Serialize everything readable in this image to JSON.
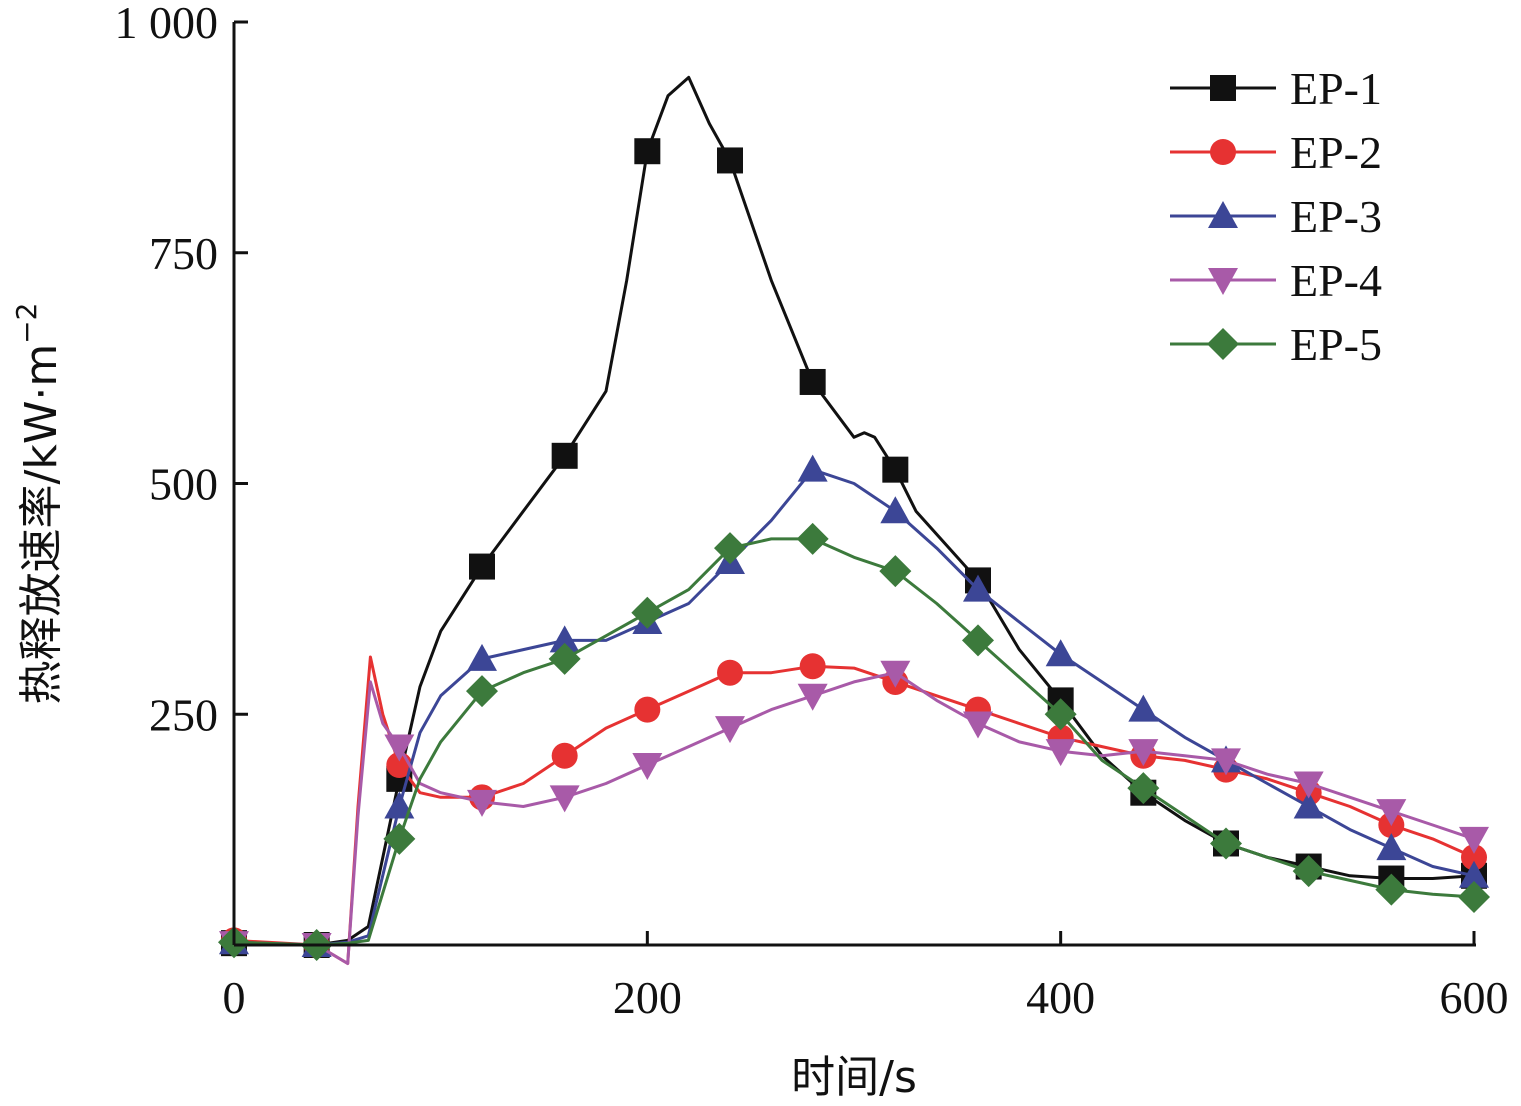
{
  "chart_data": {
    "type": "line",
    "title": "",
    "xlabel": "时间/s",
    "ylabel": "热释放速率/kW·m",
    "ylabel_superscript": "−2",
    "xlim": [
      0,
      600
    ],
    "ylim": [
      0,
      1000
    ],
    "xticks": [
      0,
      200,
      400,
      600
    ],
    "xtick_labels": [
      "0",
      "200",
      "400",
      "600"
    ],
    "yticks": [
      250,
      500,
      750,
      1000
    ],
    "ytick_labels": [
      "250",
      "500",
      "750",
      "1 000"
    ],
    "grid": false,
    "legend_position": "top-right",
    "series": [
      {
        "name": "EP-1",
        "color": "#111111",
        "marker": "square",
        "x": [
          0,
          40,
          55,
          65,
          80,
          90,
          100,
          120,
          140,
          160,
          180,
          190,
          200,
          210,
          215,
          220,
          230,
          240,
          260,
          280,
          300,
          305,
          310,
          320,
          330,
          350,
          360,
          380,
          400,
          420,
          440,
          460,
          480,
          500,
          520,
          540,
          560,
          580,
          600
        ],
        "y": [
          2,
          0,
          5,
          20,
          180,
          280,
          340,
          410,
          470,
          530,
          600,
          720,
          860,
          920,
          930,
          940,
          890,
          850,
          720,
          610,
          550,
          555,
          550,
          515,
          470,
          420,
          395,
          320,
          265,
          205,
          165,
          135,
          110,
          95,
          85,
          75,
          72,
          72,
          75
        ],
        "marker_x": [
          0,
          40,
          80,
          120,
          160,
          200,
          240,
          280,
          320,
          360,
          400,
          440,
          480,
          520,
          560,
          600
        ],
        "marker_y": [
          2,
          0,
          180,
          410,
          530,
          860,
          850,
          610,
          515,
          395,
          265,
          165,
          110,
          85,
          72,
          75
        ]
      },
      {
        "name": "EP-2",
        "color": "#e63232",
        "marker": "circle",
        "x": [
          0,
          40,
          55,
          60,
          66,
          72,
          80,
          90,
          100,
          120,
          140,
          160,
          180,
          200,
          220,
          240,
          260,
          280,
          300,
          320,
          340,
          360,
          380,
          400,
          420,
          440,
          460,
          480,
          500,
          520,
          540,
          560,
          580,
          600
        ],
        "y": [
          5,
          0,
          -20,
          150,
          312,
          250,
          195,
          165,
          160,
          160,
          175,
          205,
          235,
          255,
          275,
          295,
          295,
          302,
          300,
          285,
          270,
          255,
          240,
          225,
          215,
          205,
          200,
          190,
          180,
          165,
          150,
          130,
          115,
          95
        ],
        "marker_x": [
          0,
          40,
          80,
          120,
          160,
          200,
          240,
          280,
          320,
          360,
          400,
          440,
          480,
          520,
          560,
          600
        ],
        "marker_y": [
          5,
          0,
          195,
          160,
          205,
          255,
          295,
          302,
          285,
          255,
          225,
          205,
          190,
          165,
          130,
          95
        ]
      },
      {
        "name": "EP-3",
        "color": "#3c4696",
        "marker": "triangle-up",
        "x": [
          0,
          40,
          55,
          65,
          80,
          90,
          100,
          120,
          140,
          160,
          180,
          200,
          220,
          240,
          260,
          280,
          300,
          320,
          340,
          360,
          380,
          400,
          420,
          440,
          460,
          480,
          500,
          520,
          540,
          560,
          580,
          600
        ],
        "y": [
          3,
          0,
          3,
          10,
          150,
          230,
          270,
          310,
          320,
          330,
          330,
          350,
          370,
          415,
          460,
          515,
          500,
          470,
          430,
          385,
          350,
          315,
          285,
          255,
          225,
          200,
          175,
          150,
          125,
          105,
          85,
          75
        ],
        "marker_x": [
          0,
          40,
          80,
          120,
          160,
          200,
          240,
          280,
          320,
          360,
          400,
          440,
          480,
          520,
          560,
          600
        ],
        "marker_y": [
          3,
          0,
          150,
          310,
          330,
          350,
          415,
          515,
          470,
          385,
          315,
          255,
          200,
          150,
          105,
          75
        ]
      },
      {
        "name": "EP-4",
        "color": "#a85aa8",
        "marker": "triangle-down",
        "x": [
          0,
          40,
          55,
          60,
          66,
          72,
          80,
          90,
          100,
          120,
          140,
          160,
          180,
          200,
          220,
          240,
          260,
          280,
          300,
          320,
          340,
          360,
          380,
          400,
          420,
          440,
          460,
          480,
          500,
          520,
          540,
          560,
          580,
          600
        ],
        "y": [
          2,
          0,
          -20,
          140,
          285,
          240,
          215,
          175,
          165,
          155,
          150,
          160,
          175,
          195,
          215,
          235,
          255,
          270,
          285,
          295,
          265,
          240,
          220,
          210,
          205,
          210,
          205,
          200,
          185,
          175,
          160,
          145,
          130,
          115
        ],
        "marker_x": [
          0,
          40,
          80,
          120,
          160,
          200,
          240,
          280,
          320,
          360,
          400,
          440,
          480,
          520,
          560,
          600
        ],
        "marker_y": [
          2,
          0,
          215,
          155,
          160,
          195,
          235,
          270,
          295,
          240,
          210,
          210,
          200,
          175,
          145,
          115
        ]
      },
      {
        "name": "EP-5",
        "color": "#3c7a3c",
        "marker": "diamond",
        "x": [
          0,
          40,
          55,
          65,
          80,
          90,
          100,
          120,
          140,
          160,
          180,
          200,
          220,
          240,
          260,
          280,
          300,
          320,
          340,
          360,
          380,
          400,
          420,
          440,
          460,
          480,
          500,
          520,
          540,
          560,
          580,
          600
        ],
        "y": [
          3,
          0,
          2,
          5,
          115,
          180,
          220,
          275,
          295,
          310,
          335,
          360,
          385,
          430,
          440,
          440,
          420,
          405,
          370,
          330,
          290,
          250,
          200,
          170,
          140,
          110,
          95,
          80,
          70,
          60,
          55,
          52
        ],
        "marker_x": [
          0,
          40,
          80,
          120,
          160,
          200,
          240,
          280,
          320,
          360,
          400,
          440,
          480,
          520,
          560,
          600
        ],
        "marker_y": [
          3,
          0,
          115,
          275,
          310,
          360,
          430,
          440,
          405,
          330,
          250,
          170,
          110,
          80,
          60,
          52
        ]
      }
    ]
  }
}
